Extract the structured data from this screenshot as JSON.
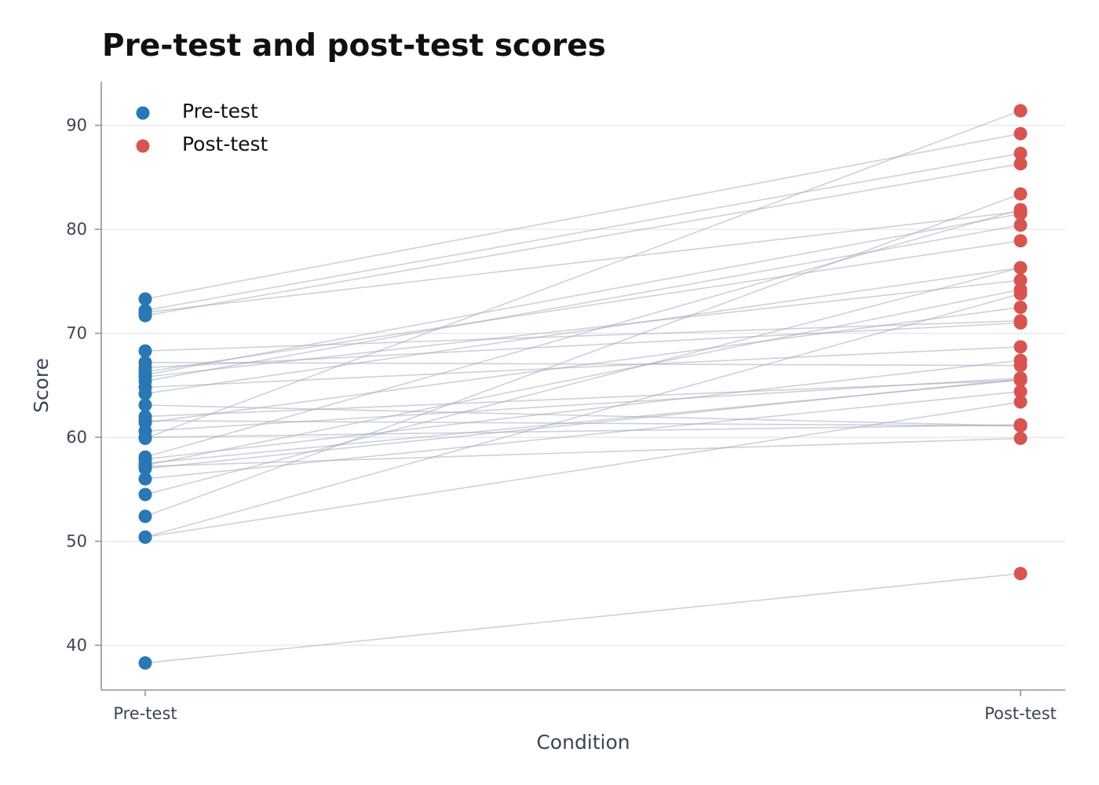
{
  "chart_data": {
    "type": "scatter",
    "title": "Pre-test and post-test scores",
    "xlabel": "Condition",
    "ylabel": "Score",
    "categories": [
      "Pre-test",
      "Post-test"
    ],
    "ylim": [
      35.7,
      94.2
    ],
    "yticks": [
      40,
      50,
      60,
      70,
      80,
      90
    ],
    "grid": "horizontal",
    "legend_position": "top-left",
    "series": [
      {
        "name": "Pre-test",
        "color": "#2878b5"
      },
      {
        "name": "Post-test",
        "color": "#d9534f"
      }
    ],
    "pairs": [
      {
        "pre": 38.3,
        "post": 46.9
      },
      {
        "pre": 50.4,
        "post": 73.8
      },
      {
        "pre": 50.4,
        "post": 63.4
      },
      {
        "pre": 52.4,
        "post": 83.4
      },
      {
        "pre": 54.5,
        "post": 76.3
      },
      {
        "pre": 56.0,
        "post": 64.4
      },
      {
        "pre": 57.0,
        "post": 65.6
      },
      {
        "pre": 57.2,
        "post": 59.9
      },
      {
        "pre": 57.3,
        "post": 74.2
      },
      {
        "pre": 57.5,
        "post": 65.5
      },
      {
        "pre": 57.9,
        "post": 67.4
      },
      {
        "pre": 58.1,
        "post": 81.9
      },
      {
        "pre": 59.9,
        "post": 91.4
      },
      {
        "pre": 60.0,
        "post": 61.2
      },
      {
        "pre": 60.6,
        "post": 65.7
      },
      {
        "pre": 61.4,
        "post": 72.5
      },
      {
        "pre": 61.6,
        "post": 61.1
      },
      {
        "pre": 62.0,
        "post": 65.5
      },
      {
        "pre": 63.1,
        "post": 61.1
      },
      {
        "pre": 64.2,
        "post": 76.3
      },
      {
        "pre": 64.8,
        "post": 68.7
      },
      {
        "pre": 65.4,
        "post": 80.4
      },
      {
        "pre": 65.8,
        "post": 75.1
      },
      {
        "pre": 66.0,
        "post": 81.5
      },
      {
        "pre": 66.3,
        "post": 78.9
      },
      {
        "pre": 66.7,
        "post": 71.0
      },
      {
        "pre": 67.2,
        "post": 66.9
      },
      {
        "pre": 68.3,
        "post": 71.2
      },
      {
        "pre": 71.7,
        "post": 86.3
      },
      {
        "pre": 72.0,
        "post": 81.7
      },
      {
        "pre": 72.2,
        "post": 87.3
      },
      {
        "pre": 73.3,
        "post": 89.2
      }
    ]
  }
}
